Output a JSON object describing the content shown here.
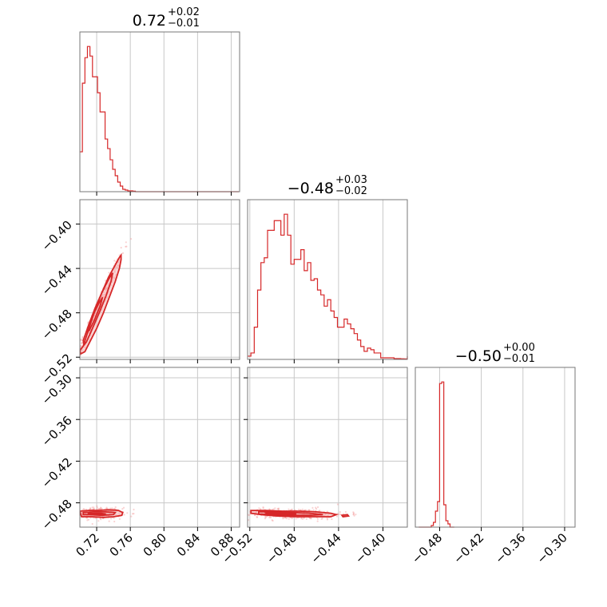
{
  "colors": {
    "accent": "#d62728",
    "accent_fill": "#f4b5b5",
    "scatter": "#f08080",
    "grid": "#c8c8c8",
    "frame": "#777777"
  },
  "chart_data": {
    "type": "corner",
    "params": [
      {
        "title": {
          "value": "0.72",
          "plus": "+0.02",
          "minus": "−0.01"
        },
        "range": [
          0.7,
          0.89
        ],
        "ticks": [
          0.72,
          0.76,
          0.8,
          0.84,
          0.88
        ],
        "tick_labels": [
          "0.72",
          "0.76",
          "0.80",
          "0.84",
          "0.88"
        ]
      },
      {
        "title": {
          "value": "−0.48",
          "plus": "+0.03",
          "minus": "−0.02"
        },
        "range": [
          -0.522,
          -0.378
        ],
        "ticks": [
          -0.52,
          -0.48,
          -0.44,
          -0.4
        ],
        "tick_labels": [
          "−0.52",
          "−0.48",
          "−0.44",
          "−0.40"
        ]
      },
      {
        "title": {
          "value": "−0.50",
          "plus": "+0.00",
          "minus": "−0.01"
        },
        "range": [
          -0.515,
          -0.285
        ],
        "ticks": [
          -0.48,
          -0.42,
          -0.36,
          -0.3
        ],
        "tick_labels": [
          "−0.48",
          "−0.42",
          "−0.36",
          "−0.30"
        ]
      }
    ],
    "histograms": [
      {
        "param": 0,
        "bin_start": 0.7,
        "bin_width": 0.003,
        "counts": [
          0.25,
          0.68,
          0.84,
          0.91,
          0.85,
          0.72,
          0.72,
          0.62,
          0.5,
          0.5,
          0.33,
          0.27,
          0.2,
          0.14,
          0.1,
          0.06,
          0.035,
          0.015,
          0.01,
          0.005,
          0.005,
          0.003,
          0,
          0,
          0,
          0,
          0,
          0,
          0,
          0,
          0,
          0,
          0,
          0,
          0,
          0,
          0,
          0,
          0,
          0,
          0,
          0,
          0,
          0,
          0,
          0,
          0,
          0,
          0,
          0,
          0,
          0,
          0,
          0,
          0,
          0,
          0,
          0,
          0,
          0,
          0,
          0,
          0
        ]
      },
      {
        "param": 1,
        "bin_start": -0.522,
        "bin_width": 0.003,
        "counts": [
          0.02,
          0.04,
          0.2,
          0.43,
          0.6,
          0.63,
          0.8,
          0.8,
          0.86,
          0.86,
          0.77,
          0.9,
          0.77,
          0.59,
          0.62,
          0.62,
          0.68,
          0.55,
          0.6,
          0.49,
          0.5,
          0.43,
          0.4,
          0.33,
          0.37,
          0.3,
          0.26,
          0.2,
          0.2,
          0.25,
          0.22,
          0.19,
          0.16,
          0.12,
          0.08,
          0.05,
          0.07,
          0.06,
          0.04,
          0.04,
          0.01,
          0.01,
          0.01,
          0.01,
          0.005,
          0.005,
          0.004,
          0.003,
          0.02
        ]
      },
      {
        "param": 2,
        "bin_start": -0.51,
        "bin_width": 0.003,
        "counts": [
          0,
          0,
          0,
          0,
          0,
          0,
          0.01,
          0.03,
          0.1,
          0.16,
          0.9,
          0.91,
          0.14,
          0.04,
          0.02,
          0,
          0
        ]
      }
    ],
    "pair_plots": [
      {
        "x_param": 0,
        "y_param": 1,
        "contours": [
          [
            [
              0.7,
              -0.514
            ],
            [
              0.704,
              -0.51
            ],
            [
              0.71,
              -0.496
            ],
            [
              0.718,
              -0.478
            ],
            [
              0.726,
              -0.462
            ],
            [
              0.734,
              -0.448
            ],
            [
              0.742,
              -0.437
            ],
            [
              0.747,
              -0.43
            ],
            [
              0.749,
              -0.428
            ],
            [
              0.749,
              -0.432
            ],
            [
              0.747,
              -0.44
            ],
            [
              0.742,
              -0.452
            ],
            [
              0.736,
              -0.464
            ],
            [
              0.728,
              -0.48
            ],
            [
              0.72,
              -0.494
            ],
            [
              0.712,
              -0.506
            ],
            [
              0.706,
              -0.515
            ],
            [
              0.701,
              -0.517
            ]
          ],
          [
            [
              0.704,
              -0.505
            ],
            [
              0.71,
              -0.492
            ],
            [
              0.718,
              -0.476
            ],
            [
              0.726,
              -0.462
            ],
            [
              0.734,
              -0.45
            ],
            [
              0.739,
              -0.444
            ],
            [
              0.737,
              -0.452
            ],
            [
              0.731,
              -0.465
            ],
            [
              0.723,
              -0.48
            ],
            [
              0.715,
              -0.494
            ],
            [
              0.708,
              -0.506
            ],
            [
              0.705,
              -0.509
            ]
          ],
          [
            [
              0.708,
              -0.497
            ],
            [
              0.714,
              -0.485
            ],
            [
              0.722,
              -0.472
            ],
            [
              0.727,
              -0.466
            ],
            [
              0.724,
              -0.474
            ],
            [
              0.717,
              -0.487
            ],
            [
              0.711,
              -0.496
            ]
          ]
        ],
        "scatter_center": [
          0.722,
          -0.476
        ],
        "scatter_spread": [
          0.014,
          0.025
        ]
      },
      {
        "x_param": 0,
        "y_param": 2,
        "contours": [
          [
            [
              0.7,
              -0.492
            ],
            [
              0.71,
              -0.491
            ],
            [
              0.722,
              -0.491
            ],
            [
              0.735,
              -0.49
            ],
            [
              0.746,
              -0.491
            ],
            [
              0.751,
              -0.494
            ],
            [
              0.75,
              -0.498
            ],
            [
              0.74,
              -0.5
            ],
            [
              0.728,
              -0.501
            ],
            [
              0.714,
              -0.5
            ],
            [
              0.702,
              -0.5
            ]
          ],
          [
            [
              0.704,
              -0.494
            ],
            [
              0.716,
              -0.493
            ],
            [
              0.73,
              -0.493
            ],
            [
              0.742,
              -0.494
            ],
            [
              0.74,
              -0.497
            ],
            [
              0.726,
              -0.498
            ],
            [
              0.712,
              -0.497
            ],
            [
              0.704,
              -0.497
            ]
          ],
          [
            [
              0.71,
              -0.495
            ],
            [
              0.724,
              -0.495
            ],
            [
              0.731,
              -0.496
            ],
            [
              0.72,
              -0.497
            ],
            [
              0.71,
              -0.496
            ]
          ]
        ],
        "scatter_center": [
          0.722,
          -0.495
        ],
        "scatter_spread": [
          0.014,
          0.004
        ]
      },
      {
        "x_param": 1,
        "y_param": 2,
        "contours": [
          [
            [
              -0.519,
              -0.491
            ],
            [
              -0.505,
              -0.491
            ],
            [
              -0.49,
              -0.492
            ],
            [
              -0.475,
              -0.492
            ],
            [
              -0.46,
              -0.493
            ],
            [
              -0.447,
              -0.495
            ],
            [
              -0.442,
              -0.497
            ],
            [
              -0.447,
              -0.5
            ],
            [
              -0.46,
              -0.5
            ],
            [
              -0.478,
              -0.5
            ],
            [
              -0.495,
              -0.499
            ],
            [
              -0.51,
              -0.497
            ],
            [
              -0.519,
              -0.495
            ]
          ],
          [
            [
              -0.512,
              -0.493
            ],
            [
              -0.498,
              -0.493
            ],
            [
              -0.482,
              -0.494
            ],
            [
              -0.466,
              -0.495
            ],
            [
              -0.454,
              -0.497
            ],
            [
              -0.466,
              -0.498
            ],
            [
              -0.484,
              -0.498
            ],
            [
              -0.5,
              -0.497
            ],
            [
              -0.512,
              -0.496
            ]
          ],
          [
            [
              -0.506,
              -0.494
            ],
            [
              -0.492,
              -0.495
            ],
            [
              -0.478,
              -0.496
            ],
            [
              -0.49,
              -0.497
            ],
            [
              -0.504,
              -0.496
            ]
          ],
          [
            [
              -0.437,
              -0.498
            ],
            [
              -0.432,
              -0.497
            ],
            [
              -0.431,
              -0.499
            ],
            [
              -0.436,
              -0.5
            ]
          ]
        ],
        "scatter_center": [
          -0.482,
          -0.496
        ],
        "scatter_spread": [
          0.025,
          0.004
        ]
      }
    ]
  }
}
